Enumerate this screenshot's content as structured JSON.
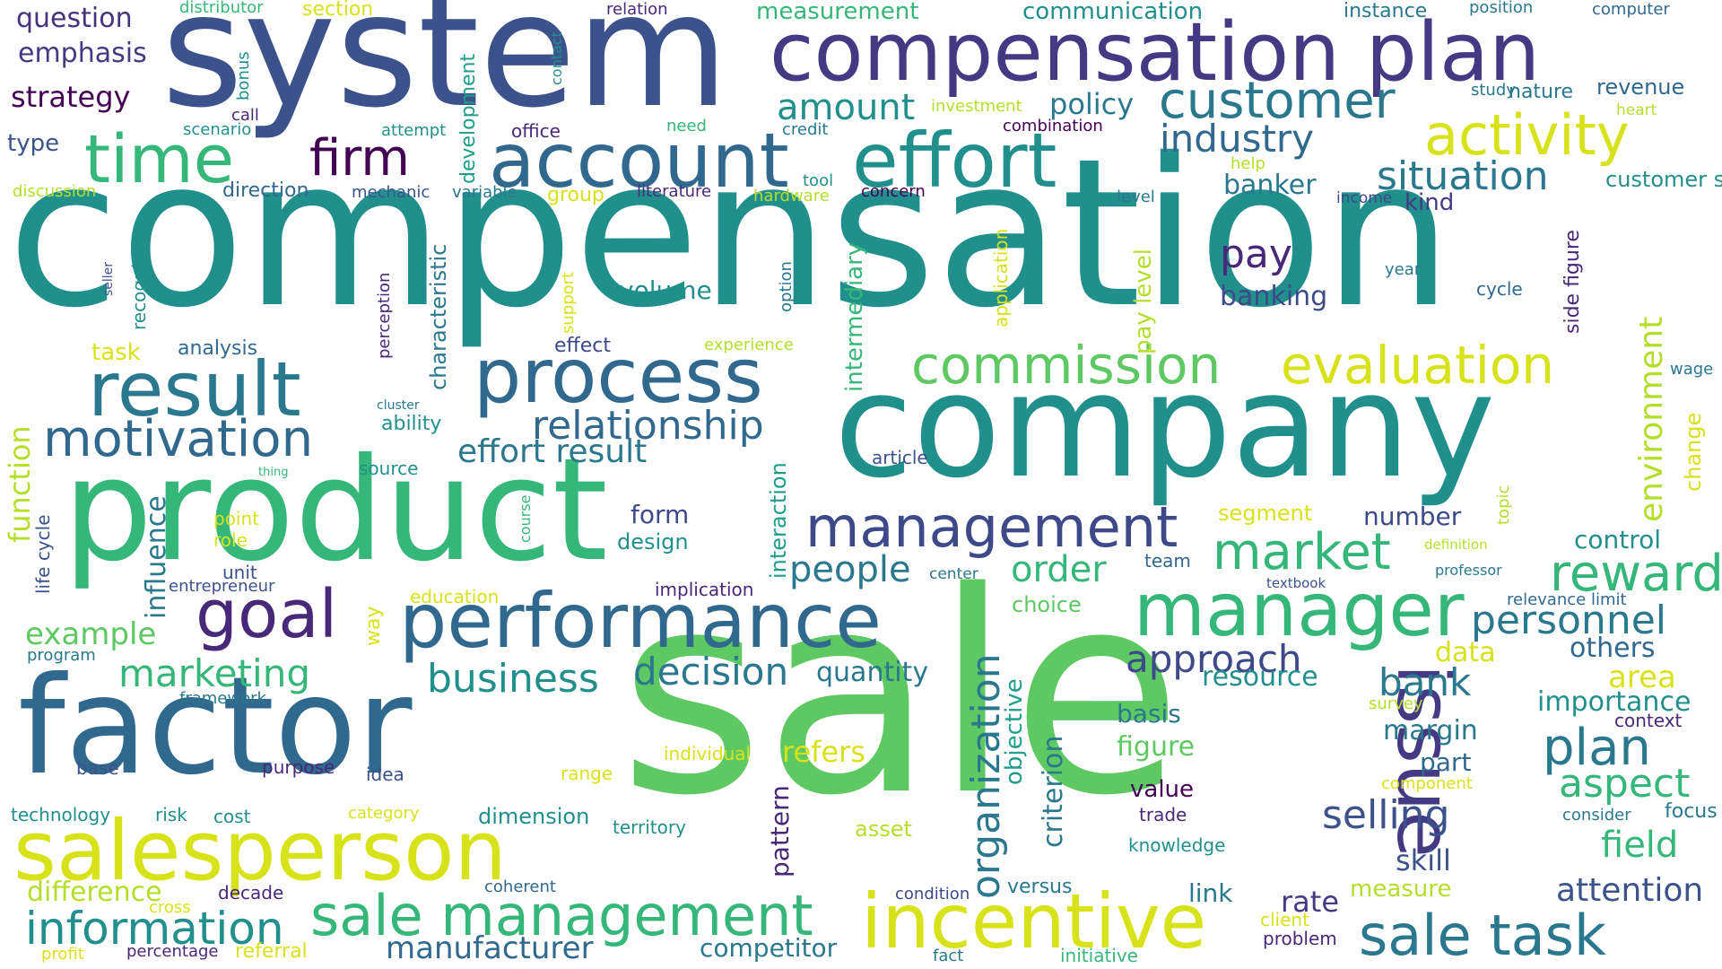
{
  "words": [
    {
      "text": "compensation",
      "color": "#21908d"
    },
    {
      "text": "sale",
      "color": "#5ec962"
    },
    {
      "text": "system",
      "color": "#3b528b"
    },
    {
      "text": "company",
      "color": "#21908d"
    },
    {
      "text": "product",
      "color": "#35b779"
    },
    {
      "text": "factor",
      "color": "#31688e"
    },
    {
      "text": "compensation plan",
      "color": "#443983"
    },
    {
      "text": "salesperson",
      "color": "#d8e219"
    },
    {
      "text": "process",
      "color": "#31688e"
    },
    {
      "text": "account",
      "color": "#31688e"
    },
    {
      "text": "effort",
      "color": "#21908d"
    },
    {
      "text": "performance",
      "color": "#31688e"
    },
    {
      "text": "incentive",
      "color": "#d8e219"
    },
    {
      "text": "result",
      "color": "#2a788e"
    },
    {
      "text": "manager",
      "color": "#35b779"
    },
    {
      "text": "issue",
      "color": "#443983"
    },
    {
      "text": "sale management",
      "color": "#35b779"
    },
    {
      "text": "sale task",
      "color": "#2a788e"
    },
    {
      "text": "time",
      "color": "#35b779"
    },
    {
      "text": "management",
      "color": "#3e4989"
    },
    {
      "text": "goal",
      "color": "#482878"
    },
    {
      "text": "customer",
      "color": "#2a788e"
    },
    {
      "text": "commission",
      "color": "#5ec962"
    },
    {
      "text": "evaluation",
      "color": "#d8e219"
    },
    {
      "text": "activity",
      "color": "#d8e219"
    },
    {
      "text": "motivation",
      "color": "#31688e"
    },
    {
      "text": "information",
      "color": "#21908d"
    },
    {
      "text": "market",
      "color": "#35b779"
    },
    {
      "text": "reward",
      "color": "#35b779"
    },
    {
      "text": "plan",
      "color": "#2a788e"
    },
    {
      "text": "firm",
      "color": "#440154"
    },
    {
      "text": "situation",
      "color": "#2a788e"
    },
    {
      "text": "industry",
      "color": "#31688e"
    },
    {
      "text": "relationship",
      "color": "#31688e"
    },
    {
      "text": "organization",
      "color": "#2a788e"
    },
    {
      "text": "business",
      "color": "#21908d"
    },
    {
      "text": "decision",
      "color": "#2a788e"
    },
    {
      "text": "approach",
      "color": "#3e4989"
    },
    {
      "text": "marketing",
      "color": "#35b779"
    },
    {
      "text": "personnel",
      "color": "#2a788e"
    },
    {
      "text": "aspect",
      "color": "#35b779"
    },
    {
      "text": "selling",
      "color": "#3b528b"
    },
    {
      "text": "bank",
      "color": "#2a788e"
    },
    {
      "text": "environment",
      "color": "#b5de2b"
    },
    {
      "text": "manufacturer",
      "color": "#31688e"
    },
    {
      "text": "effort result",
      "color": "#2a788e"
    },
    {
      "text": "amount",
      "color": "#21908d"
    },
    {
      "text": "customer service",
      "color": "#21908d"
    },
    {
      "text": "people",
      "color": "#2a788e"
    },
    {
      "text": "order",
      "color": "#35b779"
    },
    {
      "text": "pay",
      "color": "#482878"
    },
    {
      "text": "field",
      "color": "#35b779"
    },
    {
      "text": "attention",
      "color": "#3b528b"
    },
    {
      "text": "difference",
      "color": "#b5de2b"
    },
    {
      "text": "example",
      "color": "#5ec962"
    },
    {
      "text": "policy",
      "color": "#2a788e"
    },
    {
      "text": "function",
      "color": "#b5de2b"
    },
    {
      "text": "influence",
      "color": "#2a788e"
    },
    {
      "text": "banker",
      "color": "#2a788e"
    },
    {
      "text": "banking",
      "color": "#3e4989"
    },
    {
      "text": "area",
      "color": "#d8e219"
    },
    {
      "text": "skill",
      "color": "#3b528b"
    },
    {
      "text": "rate",
      "color": "#443983"
    },
    {
      "text": "criterion",
      "color": "#2a788e"
    },
    {
      "text": "pattern",
      "color": "#482878"
    },
    {
      "text": "objective",
      "color": "#1f9e89"
    },
    {
      "text": "strategy",
      "color": "#440154"
    },
    {
      "text": "emphasis",
      "color": "#443983"
    },
    {
      "text": "question",
      "color": "#46337e"
    },
    {
      "text": "figure",
      "color": "#5ec962"
    },
    {
      "text": "refers",
      "color": "#d8e219"
    },
    {
      "text": "resource",
      "color": "#21908d"
    },
    {
      "text": "margin",
      "color": "#2a788e"
    },
    {
      "text": "importance",
      "color": "#21908d"
    },
    {
      "text": "control",
      "color": "#21908d"
    },
    {
      "text": "data",
      "color": "#d8e219"
    },
    {
      "text": "others",
      "color": "#31688e"
    },
    {
      "text": "part",
      "color": "#31688e"
    },
    {
      "text": "competitor",
      "color": "#2a788e"
    },
    {
      "text": "dimension",
      "color": "#21908d"
    },
    {
      "text": "quantity",
      "color": "#2a788e"
    },
    {
      "text": "volume",
      "color": "#21908d"
    },
    {
      "text": "kind",
      "color": "#443983"
    },
    {
      "text": "number",
      "color": "#3e4989"
    },
    {
      "text": "form",
      "color": "#3e4989"
    },
    {
      "text": "design",
      "color": "#21908d"
    },
    {
      "text": "basis",
      "color": "#2a788e"
    },
    {
      "text": "value",
      "color": "#440154"
    },
    {
      "text": "measure",
      "color": "#b5de2b"
    },
    {
      "text": "link",
      "color": "#2a788e"
    },
    {
      "text": "pay level",
      "color": "#b5de2b"
    },
    {
      "text": "intermediary",
      "color": "#35b779"
    },
    {
      "text": "interaction",
      "color": "#1f9e89"
    },
    {
      "text": "characteristic",
      "color": "#2a788e"
    },
    {
      "text": "development",
      "color": "#1f9e89"
    },
    {
      "text": "measurement",
      "color": "#35b779"
    },
    {
      "text": "communication",
      "color": "#21908d"
    },
    {
      "text": "instance",
      "color": "#2a788e"
    },
    {
      "text": "revenue",
      "color": "#31688e"
    },
    {
      "text": "nature",
      "color": "#2a788e"
    },
    {
      "text": "type",
      "color": "#3b528b"
    },
    {
      "text": "direction",
      "color": "#31688e"
    },
    {
      "text": "analysis",
      "color": "#31688e"
    },
    {
      "text": "task",
      "color": "#d8e219"
    },
    {
      "text": "ability",
      "color": "#21908d"
    },
    {
      "text": "effect",
      "color": "#3e4989"
    },
    {
      "text": "segment",
      "color": "#d8e219"
    },
    {
      "text": "team",
      "color": "#31688e"
    },
    {
      "text": "choice",
      "color": "#5ec962"
    },
    {
      "text": "source",
      "color": "#21908d"
    },
    {
      "text": "unit",
      "color": "#3b528b"
    },
    {
      "text": "way",
      "color": "#d8e219"
    },
    {
      "text": "education",
      "color": "#d8e219"
    },
    {
      "text": "implication",
      "color": "#482878"
    },
    {
      "text": "entrepreneur",
      "color": "#3b528b"
    },
    {
      "text": "framework",
      "color": "#2a788e"
    },
    {
      "text": "program",
      "color": "#2a788e"
    },
    {
      "text": "life cycle",
      "color": "#3b528b"
    },
    {
      "text": "point",
      "color": "#d8e219"
    },
    {
      "text": "role",
      "color": "#d8e219"
    },
    {
      "text": "base",
      "color": "#3b528b"
    },
    {
      "text": "purpose",
      "color": "#482878"
    },
    {
      "text": "idea",
      "color": "#3b528b"
    },
    {
      "text": "range",
      "color": "#d8e219"
    },
    {
      "text": "individual",
      "color": "#d8e219"
    },
    {
      "text": "technology",
      "color": "#21908d"
    },
    {
      "text": "risk",
      "color": "#21908d"
    },
    {
      "text": "cost",
      "color": "#21908d"
    },
    {
      "text": "category",
      "color": "#d8e219"
    },
    {
      "text": "territory",
      "color": "#21908d"
    },
    {
      "text": "asset",
      "color": "#b5de2b"
    },
    {
      "text": "trade",
      "color": "#482878"
    },
    {
      "text": "knowledge",
      "color": "#21908d"
    },
    {
      "text": "component",
      "color": "#d8e219"
    },
    {
      "text": "consider",
      "color": "#2a788e"
    },
    {
      "text": "focus",
      "color": "#2a788e"
    },
    {
      "text": "context",
      "color": "#482878"
    },
    {
      "text": "survey",
      "color": "#b5de2b"
    },
    {
      "text": "relevance limit",
      "color": "#31688e"
    },
    {
      "text": "professor",
      "color": "#2a788e"
    },
    {
      "text": "definition",
      "color": "#b5de2b"
    },
    {
      "text": "textbook",
      "color": "#3b528b"
    },
    {
      "text": "center",
      "color": "#2a788e"
    },
    {
      "text": "article",
      "color": "#3b528b"
    },
    {
      "text": "topic",
      "color": "#b5de2b"
    },
    {
      "text": "change",
      "color": "#d8e219"
    },
    {
      "text": "wage",
      "color": "#2a788e"
    },
    {
      "text": "cycle",
      "color": "#31688e"
    },
    {
      "text": "year",
      "color": "#2a788e"
    },
    {
      "text": "side figure",
      "color": "#482878"
    },
    {
      "text": "income",
      "color": "#3e4989"
    },
    {
      "text": "level",
      "color": "#2a788e"
    },
    {
      "text": "help",
      "color": "#b5de2b"
    },
    {
      "text": "concern",
      "color": "#440154"
    },
    {
      "text": "combination",
      "color": "#440154"
    },
    {
      "text": "hardware",
      "color": "#b5de2b"
    },
    {
      "text": "tool",
      "color": "#21908d"
    },
    {
      "text": "credit",
      "color": "#2a788e"
    },
    {
      "text": "literature",
      "color": "#482878"
    },
    {
      "text": "group",
      "color": "#d8e219"
    },
    {
      "text": "variable",
      "color": "#2a788e"
    },
    {
      "text": "mechanic",
      "color": "#3b528b"
    },
    {
      "text": "office",
      "color": "#482878"
    },
    {
      "text": "need",
      "color": "#35b779"
    },
    {
      "text": "attempt",
      "color": "#21908d"
    },
    {
      "text": "scenario",
      "color": "#21908d"
    },
    {
      "text": "call",
      "color": "#482878"
    },
    {
      "text": "bonus",
      "color": "#21908d"
    },
    {
      "text": "discussion",
      "color": "#b5de2b"
    },
    {
      "text": "recognition",
      "color": "#21908d"
    },
    {
      "text": "seller",
      "color": "#3b528b"
    },
    {
      "text": "perception",
      "color": "#482878"
    },
    {
      "text": "cluster",
      "color": "#2a788e"
    },
    {
      "text": "thing",
      "color": "#35b779"
    },
    {
      "text": "course",
      "color": "#35b779"
    },
    {
      "text": "support",
      "color": "#d8e219"
    },
    {
      "text": "experience",
      "color": "#b5de2b"
    },
    {
      "text": "option",
      "color": "#2a788e"
    },
    {
      "text": "application",
      "color": "#d8e219"
    },
    {
      "text": "investment",
      "color": "#b5de2b"
    },
    {
      "text": "contact",
      "color": "#21908d"
    },
    {
      "text": "relation",
      "color": "#482878"
    },
    {
      "text": "distributor",
      "color": "#35b779"
    },
    {
      "text": "section",
      "color": "#d8e219"
    },
    {
      "text": "position",
      "color": "#2a788e"
    },
    {
      "text": "computer",
      "color": "#31688e"
    },
    {
      "text": "study",
      "color": "#2a788e"
    },
    {
      "text": "heart",
      "color": "#b5de2b"
    },
    {
      "text": "decade",
      "color": "#482878"
    },
    {
      "text": "cross",
      "color": "#d8e219"
    },
    {
      "text": "coherent",
      "color": "#31688e"
    },
    {
      "text": "profit",
      "color": "#d8e219"
    },
    {
      "text": "percentage",
      "color": "#482878"
    },
    {
      "text": "referral",
      "color": "#d8e219"
    },
    {
      "text": "condition",
      "color": "#3e4989"
    },
    {
      "text": "versus",
      "color": "#2a788e"
    },
    {
      "text": "fact",
      "color": "#2a788e"
    },
    {
      "text": "initiative",
      "color": "#35b779"
    },
    {
      "text": "client",
      "color": "#d8e219"
    },
    {
      "text": "problem",
      "color": "#482878"
    }
  ]
}
